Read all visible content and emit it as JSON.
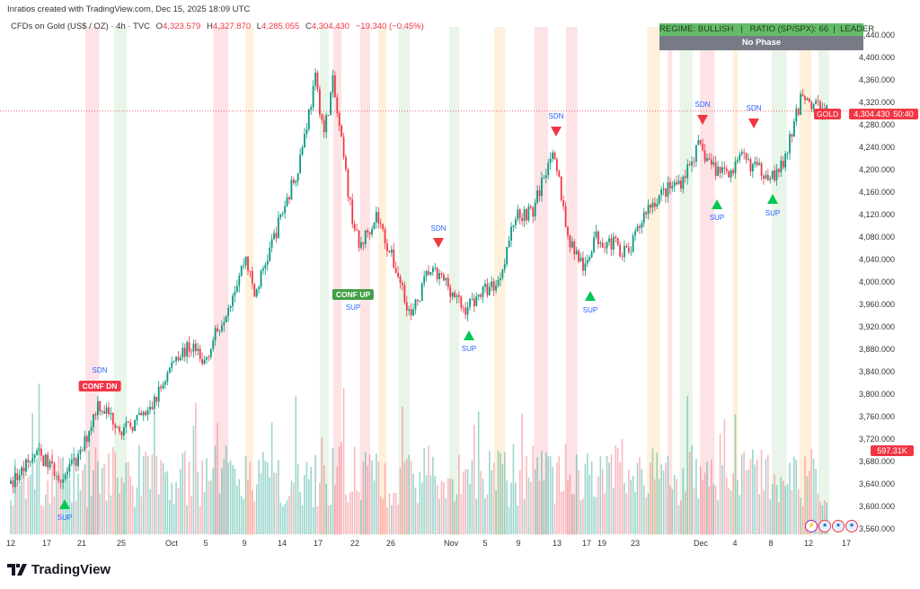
{
  "credit": "Inratios created with TradingView.com, Dec 15, 2025 18:09 UTC",
  "legend": {
    "symbol": "CFDs on Gold (US$ / OZ) · 4h · TVC",
    "open_label": "O",
    "open": "4,323.579",
    "high_label": "H",
    "high": "4,327.870",
    "low_label": "L",
    "low": "4,285.055",
    "close_label": "C",
    "close": "4,304.430",
    "change": "−19.340 (−0.45%)"
  },
  "indicator": {
    "regime": "REGIME: BULLISH   |   RATIO (SP/SPX): 66  |  LEADER",
    "phase": "No Phase"
  },
  "price_tag": {
    "symbol": "GOLD",
    "price": "4,304.430",
    "countdown": "50:40"
  },
  "volume_tag": "597.31K",
  "colors": {
    "up": "#089981",
    "down": "#f23645",
    "signal_up": "#00c853",
    "annotation_text": "#2962ff",
    "regime_bg": "#66bb6a",
    "phase_bg": "#787b86"
  },
  "chart_data": {
    "type": "candlestick",
    "title": "CFDs on Gold (US$ / OZ) · 4h · TVC",
    "ylim": [
      3560,
      4440
    ],
    "y_ticks": [
      "4,440.000",
      "4,400.000",
      "4,360.000",
      "4,320.000",
      "4,280.000",
      "4,240.000",
      "4,200.000",
      "4,160.000",
      "4,120.000",
      "4,080.000",
      "4,040.000",
      "4,000.000",
      "3,960.000",
      "3,920.000",
      "3,880.000",
      "3,840.000",
      "3,800.000",
      "3,760.000",
      "3,720.000",
      "3,680.000",
      "3,640.000",
      "3,600.000",
      "3,560.000"
    ],
    "x_ticks": [
      "12",
      "17",
      "21",
      "25",
      "Oct",
      "5",
      "9",
      "14",
      "17",
      "22",
      "26",
      "Nov",
      "5",
      "9",
      "13",
      "17",
      "19",
      "23",
      "Dec",
      "4",
      "8",
      "12",
      "17"
    ],
    "grid": false,
    "close_path": [
      [
        "2025-09-12",
        3640
      ],
      [
        "2025-09-15",
        3695
      ],
      [
        "2025-09-18",
        3650
      ],
      [
        "2025-09-20",
        3690
      ],
      [
        "2025-09-22",
        3785
      ],
      [
        "2025-09-25",
        3735
      ],
      [
        "2025-09-28",
        3770
      ],
      [
        "2025-10-01",
        3870
      ],
      [
        "2025-10-03",
        3885
      ],
      [
        "2025-10-04",
        3850
      ],
      [
        "2025-10-07",
        3960
      ],
      [
        "2025-10-09",
        4045
      ],
      [
        "2025-10-10",
        3975
      ],
      [
        "2025-10-13",
        4115
      ],
      [
        "2025-10-15",
        4205
      ],
      [
        "2025-10-17",
        4360
      ],
      [
        "2025-10-18",
        4265
      ],
      [
        "2025-10-19",
        4355
      ],
      [
        "2025-10-21",
        4135
      ],
      [
        "2025-10-22",
        4060
      ],
      [
        "2025-10-24",
        4120
      ],
      [
        "2025-10-27",
        3990
      ],
      [
        "2025-10-28",
        3935
      ],
      [
        "2025-10-30",
        4020
      ],
      [
        "2025-11-01",
        4000
      ],
      [
        "2025-11-03",
        3950
      ],
      [
        "2025-11-05",
        3980
      ],
      [
        "2025-11-07",
        4000
      ],
      [
        "2025-11-09",
        4120
      ],
      [
        "2025-11-11",
        4125
      ],
      [
        "2025-11-13",
        4230
      ],
      [
        "2025-11-14",
        4180
      ],
      [
        "2025-11-15",
        4080
      ],
      [
        "2025-11-17",
        4020
      ],
      [
        "2025-11-18",
        4080
      ],
      [
        "2025-11-20",
        4070
      ],
      [
        "2025-11-22",
        4050
      ],
      [
        "2025-11-24",
        4130
      ],
      [
        "2025-11-26",
        4160
      ],
      [
        "2025-11-28",
        4180
      ],
      [
        "2025-11-30",
        4240
      ],
      [
        "2025-12-02",
        4200
      ],
      [
        "2025-12-04",
        4200
      ],
      [
        "2025-12-05",
        4220
      ],
      [
        "2025-12-07",
        4200
      ],
      [
        "2025-12-09",
        4190
      ],
      [
        "2025-12-10",
        4220
      ],
      [
        "2025-12-11",
        4280
      ],
      [
        "2025-12-12",
        4340
      ],
      [
        "2025-12-13",
        4315
      ],
      [
        "2025-12-15",
        4304.43
      ]
    ],
    "annotations": [
      {
        "text": "SUP",
        "type": "support"
      },
      {
        "text": "SDN",
        "type": "signal-down"
      },
      {
        "text": "CONF DN",
        "type": "confirm-down"
      },
      {
        "text": "CONF UP",
        "type": "confirm-up"
      },
      {
        "text": "SUP",
        "type": "support"
      },
      {
        "text": "SDN",
        "type": "signal-down"
      },
      {
        "text": "SUP",
        "type": "support"
      },
      {
        "text": "SDN",
        "type": "signal-down"
      },
      {
        "text": "SUP",
        "type": "support"
      },
      {
        "text": "SDN",
        "type": "signal-down"
      },
      {
        "text": "SUP",
        "type": "support"
      },
      {
        "text": "SDN",
        "type": "signal-down"
      },
      {
        "text": "SUP",
        "type": "support"
      }
    ]
  },
  "brand": "TradingView"
}
